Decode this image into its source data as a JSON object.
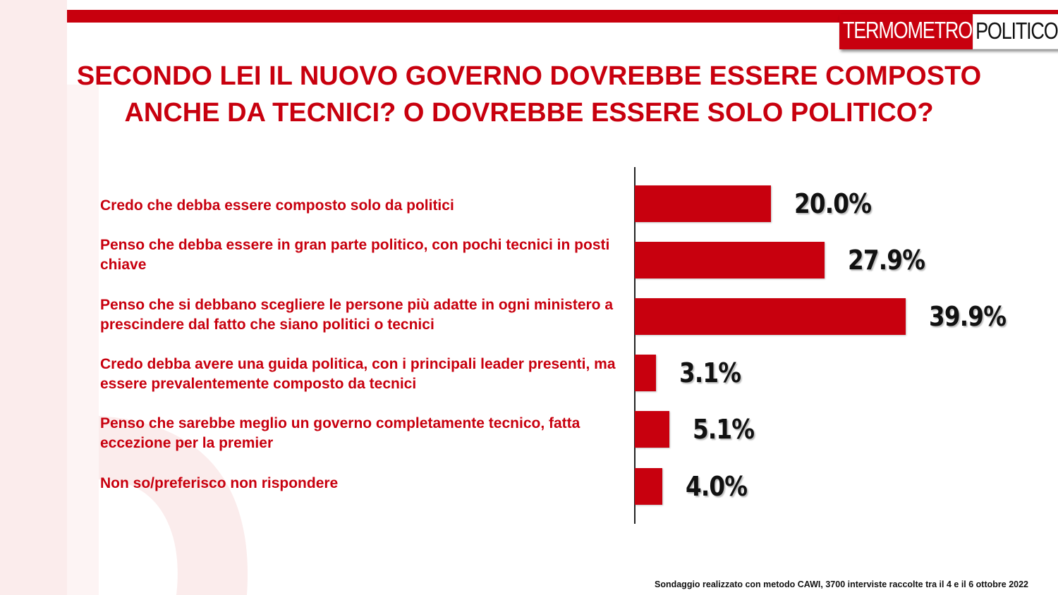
{
  "brand": {
    "logo_left": "TERMOMETRO",
    "logo_right": "POLITICO",
    "accent_color": "#c8000e"
  },
  "chart_data": {
    "type": "bar",
    "orientation": "horizontal",
    "title": "SECONDO LEI IL NUOVO GOVERNO DOVREBBE ESSERE COMPOSTO ANCHE DA TECNICI? O DOVREBBE ESSERE SOLO POLITICO?",
    "categories": [
      "Credo che debba essere composto solo da politici",
      "Penso che debba essere in gran parte politico, con pochi tecnici in posti chiave",
      "Penso che si debbano scegliere le persone più adatte in ogni ministero a prescindere dal fatto che siano politici o tecnici",
      "Credo debba avere una guida politica, con i principali leader presenti, ma essere prevalentemente composto da tecnici",
      "Penso che sarebbe meglio un governo completamente tecnico, fatta eccezione per la premier",
      "Non so/preferisco non rispondere"
    ],
    "values": [
      20.0,
      27.9,
      39.9,
      3.1,
      5.1,
      4.0
    ],
    "value_labels": [
      "20.0%",
      "27.9%",
      "39.9%",
      "3.1%",
      "5.1%",
      "4.0%"
    ],
    "unit": "%",
    "xlim": [
      0,
      40
    ],
    "bar_color": "#c8000e",
    "grid": false,
    "legend": "none"
  },
  "footer": {
    "source": "Sondaggio realizzato con metodo CAWI, 3700 interviste raccolte tra il 4 e il 6 ottobre 2022"
  }
}
